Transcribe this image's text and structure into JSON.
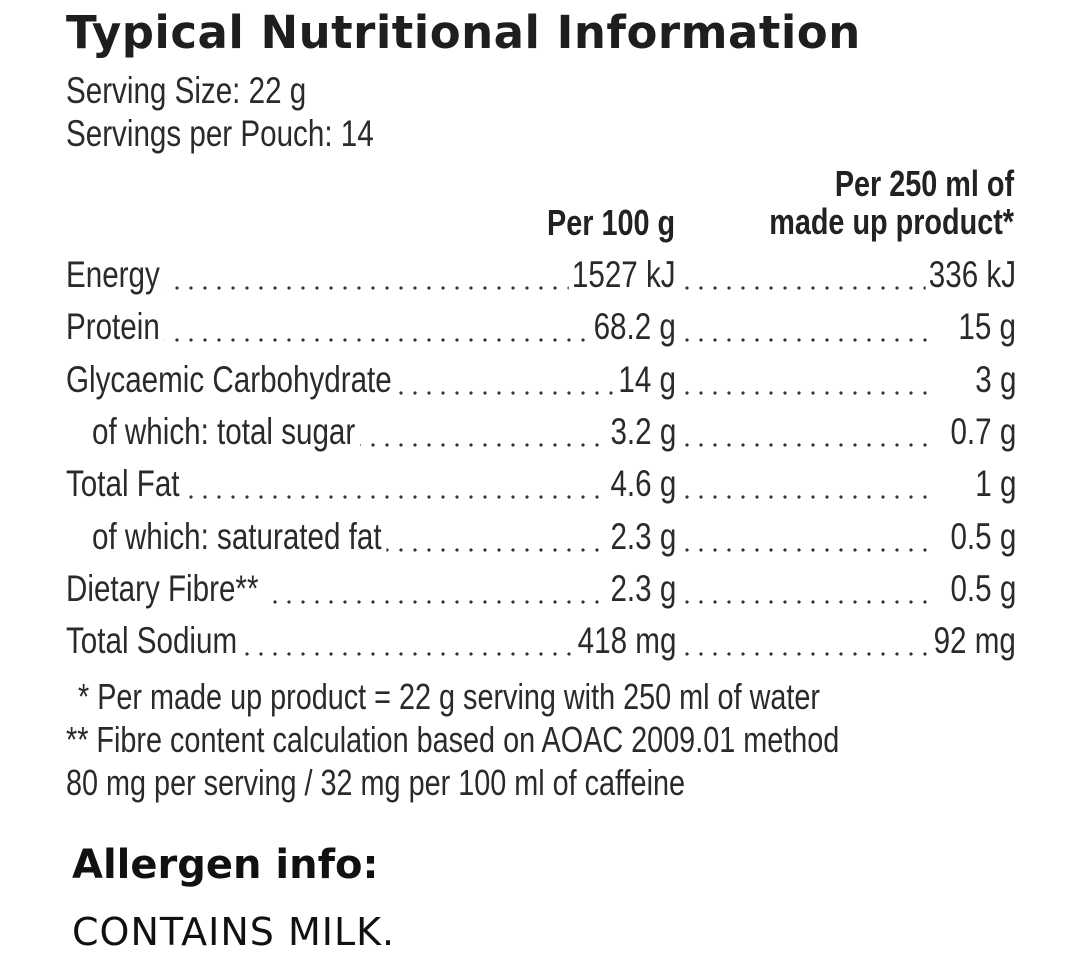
{
  "title": "Typical Nutritional Information",
  "serving_size": "Serving Size: 22 g",
  "servings_per_pouch": "Servings per Pouch: 14",
  "column_headers": {
    "per_100g": "Per 100 g",
    "per_250ml_line1": "Per 250 ml of",
    "per_250ml_line2": "made up product*"
  },
  "rows": [
    {
      "label": "Energy",
      "per_100g": "1527 kJ",
      "per_250ml": "336 kJ",
      "indent": false
    },
    {
      "label": "Protein",
      "per_100g": "68.2 g",
      "per_250ml": "15 g",
      "indent": false
    },
    {
      "label": "Glycaemic Carbohydrate",
      "per_100g": "14 g",
      "per_250ml": "3 g",
      "indent": false
    },
    {
      "label": "of which: total sugar",
      "per_100g": "3.2 g",
      "per_250ml": "0.7 g",
      "indent": true
    },
    {
      "label": "Total Fat",
      "per_100g": "4.6 g",
      "per_250ml": "1 g",
      "indent": false
    },
    {
      "label": "of which: saturated fat",
      "per_100g": "2.3 g",
      "per_250ml": "0.5 g",
      "indent": true
    },
    {
      "label": "Dietary Fibre**",
      "per_100g": "2.3 g",
      "per_250ml": "0.5 g",
      "indent": false
    },
    {
      "label": "Total Sodium",
      "per_100g": "418 mg",
      "per_250ml": "92 mg",
      "indent": false
    }
  ],
  "footnotes": [
    "* Per made up product = 22 g serving with 250 ml of water",
    "** Fibre content calculation based on AOAC 2009.01 method",
    "80 mg per serving / 32 mg per 100 ml of caffeine"
  ],
  "allergen": {
    "heading": "Allergen info:",
    "text": "CONTAINS MILK."
  }
}
